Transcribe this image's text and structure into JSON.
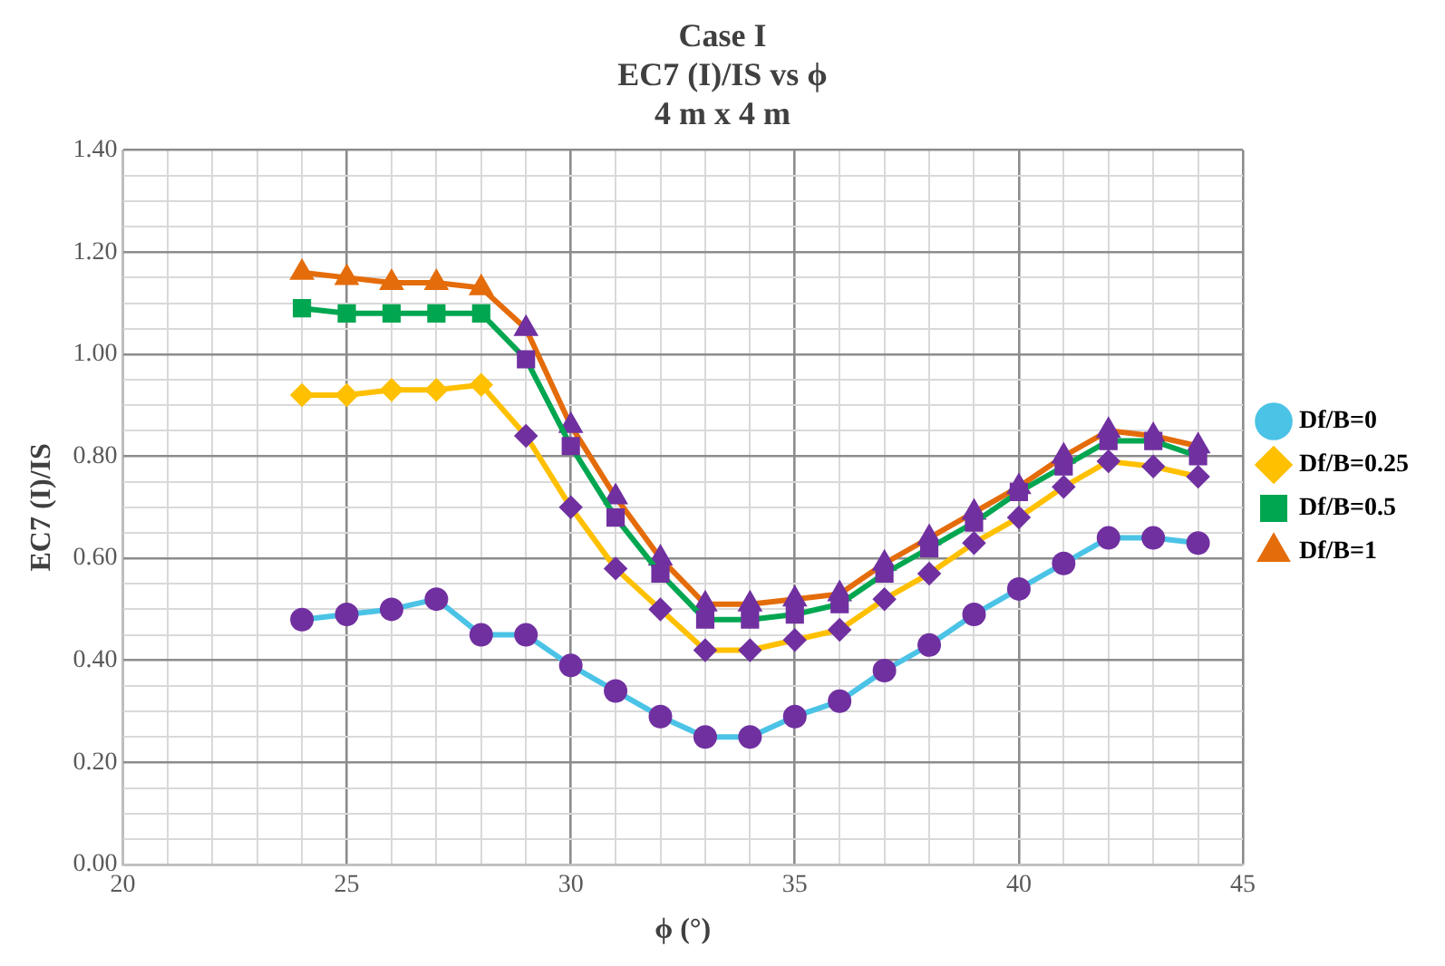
{
  "chart_data": {
    "type": "line",
    "title": "Case I\nEC7 (I)/IS vs ϕ\n4 m x 4 m",
    "xlabel": "ϕ (°)",
    "ylabel": "EC7 (I)/IS",
    "x": [
      24,
      25,
      26,
      27,
      28,
      29,
      30,
      31,
      32,
      33,
      34,
      35,
      36,
      37,
      38,
      39,
      40,
      41,
      42,
      43,
      44
    ],
    "series": [
      {
        "name": "Df/B=0",
        "color": "#4bc3e6",
        "marker": "circle",
        "colors": [
          "#7030a0",
          "#7030a0",
          "#7030a0",
          "#7030a0",
          "#7030a0",
          "#7030a0",
          "#7030a0",
          "#7030a0",
          "#7030a0",
          "#7030a0",
          "#7030a0",
          "#7030a0",
          "#7030a0",
          "#7030a0",
          "#7030a0",
          "#7030a0",
          "#7030a0",
          "#7030a0",
          "#7030a0",
          "#7030a0",
          "#7030a0"
        ],
        "values": [
          0.48,
          0.49,
          0.5,
          0.52,
          0.45,
          0.45,
          0.39,
          0.34,
          0.29,
          0.25,
          0.25,
          0.29,
          0.32,
          0.38,
          0.43,
          0.49,
          0.54,
          0.59,
          0.64,
          0.64,
          0.63
        ]
      },
      {
        "name": "Df/B=0.25",
        "color": "#ffc000",
        "marker": "diamond",
        "colors": [
          "#ffc000",
          "#ffc000",
          "#ffc000",
          "#ffc000",
          "#ffc000",
          "#7030a0",
          "#7030a0",
          "#7030a0",
          "#7030a0",
          "#7030a0",
          "#7030a0",
          "#7030a0",
          "#7030a0",
          "#7030a0",
          "#7030a0",
          "#7030a0",
          "#7030a0",
          "#7030a0",
          "#7030a0",
          "#7030a0",
          "#7030a0"
        ],
        "values": [
          0.92,
          0.92,
          0.93,
          0.93,
          0.94,
          0.84,
          0.7,
          0.58,
          0.5,
          0.42,
          0.42,
          0.44,
          0.46,
          0.52,
          0.57,
          0.63,
          0.68,
          0.74,
          0.79,
          0.78,
          0.76
        ]
      },
      {
        "name": "Df/B=0.5",
        "color": "#00a650",
        "marker": "square",
        "colors": [
          "#00a650",
          "#00a650",
          "#00a650",
          "#00a650",
          "#00a650",
          "#7030a0",
          "#7030a0",
          "#7030a0",
          "#7030a0",
          "#7030a0",
          "#7030a0",
          "#7030a0",
          "#7030a0",
          "#7030a0",
          "#7030a0",
          "#7030a0",
          "#7030a0",
          "#7030a0",
          "#7030a0",
          "#7030a0",
          "#7030a0"
        ],
        "values": [
          1.09,
          1.08,
          1.08,
          1.08,
          1.08,
          0.99,
          0.82,
          0.68,
          0.57,
          0.48,
          0.48,
          0.49,
          0.51,
          0.57,
          0.62,
          0.67,
          0.73,
          0.78,
          0.83,
          0.83,
          0.8
        ]
      },
      {
        "name": "Df/B=1",
        "color": "#e46c0a",
        "marker": "triangle",
        "colors": [
          "#e46c0a",
          "#e46c0a",
          "#e46c0a",
          "#e46c0a",
          "#e46c0a",
          "#7030a0",
          "#7030a0",
          "#7030a0",
          "#7030a0",
          "#7030a0",
          "#7030a0",
          "#7030a0",
          "#7030a0",
          "#7030a0",
          "#7030a0",
          "#7030a0",
          "#7030a0",
          "#7030a0",
          "#7030a0",
          "#7030a0",
          "#7030a0"
        ],
        "values": [
          1.16,
          1.15,
          1.14,
          1.14,
          1.13,
          1.05,
          0.86,
          0.72,
          0.6,
          0.51,
          0.51,
          0.52,
          0.53,
          0.59,
          0.64,
          0.69,
          0.74,
          0.8,
          0.85,
          0.84,
          0.82
        ]
      }
    ],
    "xlim": [
      20,
      45
    ],
    "xticks": [
      20,
      {
        "value": 21,
        "label": null
      },
      {
        "value": 22,
        "label": null
      },
      {
        "value": 23,
        "label": null
      },
      {
        "value": 24,
        "label": null
      },
      25,
      {
        "value": 26,
        "label": null
      },
      {
        "value": 27,
        "label": null
      },
      {
        "value": 28,
        "label": null
      },
      {
        "value": 29,
        "label": null
      },
      30,
      {
        "value": 31,
        "label": null
      },
      {
        "value": 32,
        "label": null
      },
      {
        "value": 33,
        "label": null
      },
      {
        "value": 34,
        "label": null
      },
      35,
      {
        "value": 36,
        "label": null
      },
      {
        "value": 37,
        "label": null
      },
      {
        "value": 38,
        "label": null
      },
      {
        "value": 39,
        "label": null
      },
      40,
      {
        "value": 41,
        "label": null
      },
      {
        "value": 42,
        "label": null
      },
      {
        "value": 43,
        "label": null
      },
      {
        "value": 44,
        "label": null
      },
      45
    ],
    "ylim": [
      0,
      1.4
    ],
    "yticks": [
      {
        "value": 0,
        "label": "0.00"
      },
      {
        "value": 0.05,
        "label": null
      },
      {
        "value": 0.1,
        "label": null
      },
      {
        "value": 0.15,
        "label": null
      },
      {
        "value": 0.2,
        "label": "0.20"
      },
      {
        "value": 0.25,
        "label": null
      },
      {
        "value": 0.3,
        "label": null
      },
      {
        "value": 0.35,
        "label": null
      },
      {
        "value": 0.4,
        "label": "0.40"
      },
      {
        "value": 0.45,
        "label": null
      },
      {
        "value": 0.5,
        "label": null
      },
      {
        "value": 0.55,
        "label": null
      },
      {
        "value": 0.6,
        "label": "0.60"
      },
      {
        "value": 0.65,
        "label": null
      },
      {
        "value": 0.7,
        "label": null
      },
      {
        "value": 0.75,
        "label": null
      },
      {
        "value": 0.8,
        "label": "0.80"
      },
      {
        "value": 0.85,
        "label": null
      },
      {
        "value": 0.9,
        "label": null
      },
      {
        "value": 0.95,
        "label": null
      },
      {
        "value": 1,
        "label": "1.00"
      },
      {
        "value": 1.05,
        "label": null
      },
      {
        "value": 1.1,
        "label": null
      },
      {
        "value": 1.15,
        "label": null
      },
      {
        "value": 1.2,
        "label": "1.20"
      },
      {
        "value": 1.25,
        "label": null
      },
      {
        "value": 1.3,
        "label": null
      },
      {
        "value": 1.35,
        "label": null
      },
      {
        "value": 1.4,
        "label": "1.40"
      }
    ],
    "grid": true,
    "legend": "right",
    "line_style": "solid"
  }
}
